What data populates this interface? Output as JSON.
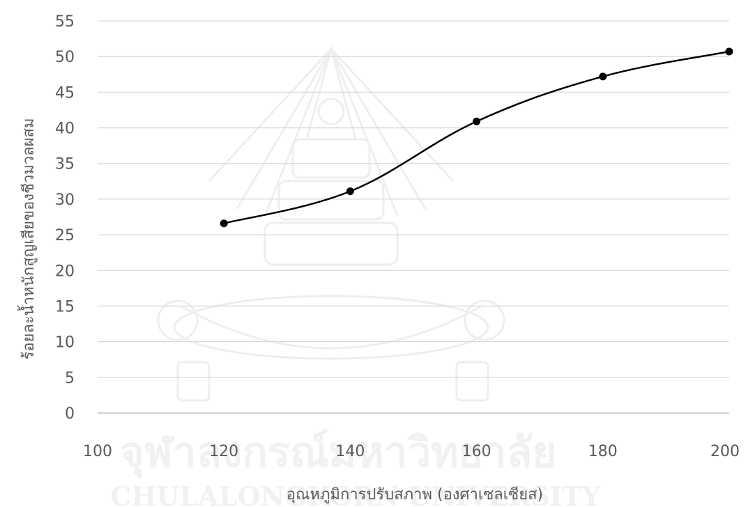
{
  "chart_data": {
    "type": "line",
    "title": "",
    "xlabel": "อุณหภูมิการปรับสภาพ (องศาเซลเซียส)",
    "ylabel": "ร้อยละน้ำหนักสูญเสียของชีวมวลผสม",
    "xlim": [
      100,
      200
    ],
    "ylim": [
      0,
      55
    ],
    "x_ticks": [
      "100",
      "120",
      "140",
      "160",
      "180",
      "200"
    ],
    "y_ticks": [
      "0",
      "5",
      "10",
      "15",
      "20",
      "25",
      "30",
      "35",
      "40",
      "45",
      "50",
      "55"
    ],
    "grid": "horizontal",
    "smooth": true,
    "series": [
      {
        "x": [
          120,
          140,
          160,
          180,
          200
        ],
        "y": [
          26.6,
          31.1,
          40.9,
          47.2,
          50.7
        ]
      }
    ]
  },
  "watermark": {
    "university_thai": "จุฬาลงกรณ์มหาวิทยาลัย",
    "university_en": "CHULALONGKORN UNIVERSITY"
  },
  "colors": {
    "line": "#000000",
    "grid": "#d9d9d9",
    "axis": "#bfbfbf",
    "text": "#595959"
  }
}
